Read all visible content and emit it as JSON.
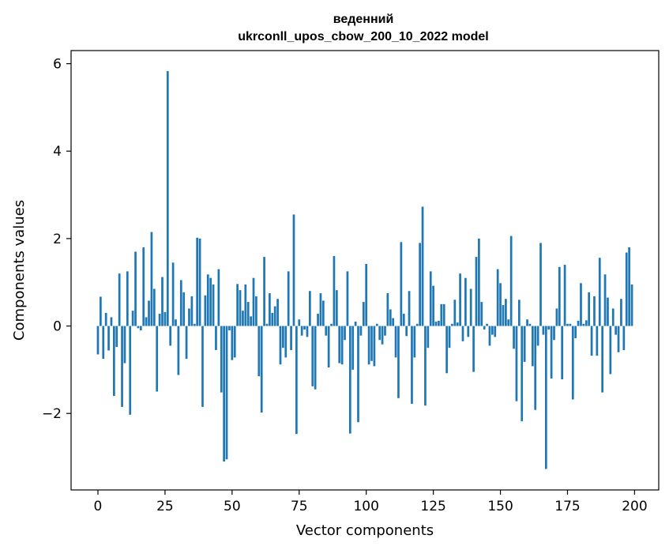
{
  "chart_data": {
    "type": "bar",
    "title_line1": "веденний",
    "title_line2": "ukrconll_upos_cbow_200_10_2022 model",
    "xlabel": "Vector components",
    "ylabel": "Components values",
    "xlim": [
      -10,
      209
    ],
    "ylim": [
      -3.75,
      6.3
    ],
    "xticks": [
      0,
      25,
      50,
      75,
      100,
      125,
      150,
      175,
      200
    ],
    "xtick_labels": [
      "0",
      "25",
      "50",
      "75",
      "100",
      "125",
      "150",
      "175",
      "200"
    ],
    "yticks": [
      -2,
      0,
      2,
      4,
      6
    ],
    "ytick_labels": [
      "−2",
      "0",
      "2",
      "4",
      "6"
    ],
    "bar_color": "#1f77b4",
    "grid": false,
    "x": [
      0,
      1,
      2,
      3,
      4,
      5,
      6,
      7,
      8,
      9,
      10,
      11,
      12,
      13,
      14,
      15,
      16,
      17,
      18,
      19,
      20,
      21,
      22,
      23,
      24,
      25,
      26,
      27,
      28,
      29,
      30,
      31,
      32,
      33,
      34,
      35,
      36,
      37,
      38,
      39,
      40,
      41,
      42,
      43,
      44,
      45,
      46,
      47,
      48,
      49,
      50,
      51,
      52,
      53,
      54,
      55,
      56,
      57,
      58,
      59,
      60,
      61,
      62,
      63,
      64,
      65,
      66,
      67,
      68,
      69,
      70,
      71,
      72,
      73,
      74,
      75,
      76,
      77,
      78,
      79,
      80,
      81,
      82,
      83,
      84,
      85,
      86,
      87,
      88,
      89,
      90,
      91,
      92,
      93,
      94,
      95,
      96,
      97,
      98,
      99,
      100,
      101,
      102,
      103,
      104,
      105,
      106,
      107,
      108,
      109,
      110,
      111,
      112,
      113,
      114,
      115,
      116,
      117,
      118,
      119,
      120,
      121,
      122,
      123,
      124,
      125,
      126,
      127,
      128,
      129,
      130,
      131,
      132,
      133,
      134,
      135,
      136,
      137,
      138,
      139,
      140,
      141,
      142,
      143,
      144,
      145,
      146,
      147,
      148,
      149,
      150,
      151,
      152,
      153,
      154,
      155,
      156,
      157,
      158,
      159,
      160,
      161,
      162,
      163,
      164,
      165,
      166,
      167,
      168,
      169,
      170,
      171,
      172,
      173,
      174,
      175,
      176,
      177,
      178,
      179,
      180,
      181,
      182,
      183,
      184,
      185,
      186,
      187,
      188,
      189,
      190,
      191,
      192,
      193,
      194,
      195,
      196,
      197,
      198,
      199
    ],
    "values": [
      -0.65,
      0.67,
      -0.75,
      0.3,
      -0.56,
      0.2,
      -1.6,
      -0.48,
      1.2,
      -1.85,
      -0.85,
      1.25,
      -2.03,
      0.35,
      1.7,
      -0.05,
      -0.1,
      1.8,
      0.2,
      0.58,
      2.15,
      0.85,
      -1.5,
      0.28,
      1.12,
      0.32,
      5.83,
      -0.45,
      1.45,
      0.15,
      -1.12,
      1.05,
      0.77,
      -0.75,
      0.4,
      0.68,
      0.05,
      2.02,
      2.0,
      -1.85,
      0.7,
      1.18,
      1.1,
      0.95,
      -0.55,
      1.3,
      -1.52,
      -3.1,
      -3.05,
      -0.1,
      -0.78,
      -0.72,
      0.96,
      0.82,
      0.35,
      0.95,
      0.55,
      0.22,
      1.1,
      0.68,
      -1.15,
      -1.98,
      1.58,
      0.05,
      0.75,
      0.3,
      0.45,
      0.62,
      -0.88,
      -0.5,
      -0.72,
      1.25,
      -0.55,
      2.55,
      -2.47,
      0.15,
      -0.22,
      -0.08,
      -0.25,
      0.8,
      -1.38,
      -1.45,
      0.28,
      0.75,
      0.58,
      -0.22,
      -0.95,
      0.05,
      1.6,
      0.82,
      -0.85,
      -0.88,
      -0.32,
      1.25,
      -2.46,
      -1.0,
      0.1,
      -2.2,
      -0.22,
      0.55,
      1.42,
      -0.88,
      -0.8,
      -0.92,
      0.05,
      -0.32,
      -0.42,
      -0.22,
      0.75,
      0.38,
      0.18,
      -0.72,
      -1.65,
      1.92,
      0.28,
      -0.23,
      0.8,
      -1.78,
      -0.72,
      0.05,
      1.9,
      2.73,
      -1.82,
      -0.5,
      1.25,
      0.92,
      0.1,
      0.12,
      0.5,
      0.5,
      -1.08,
      -0.5,
      0.05,
      0.6,
      0.08,
      1.2,
      -0.35,
      1.1,
      -0.25,
      0.85,
      -1.05,
      1.58,
      2.0,
      0.55,
      -0.08,
      0.05,
      -0.45,
      -0.2,
      -0.25,
      1.3,
      0.98,
      0.48,
      0.62,
      0.15,
      2.06,
      -0.52,
      -1.72,
      0.6,
      -2.18,
      -0.82,
      0.15,
      0.05,
      -0.92,
      -1.92,
      -0.45,
      1.9,
      -0.2,
      -3.27,
      -0.08,
      -1.2,
      -0.32,
      0.4,
      1.35,
      -1.22,
      1.4,
      0.05,
      0.05,
      -1.68,
      -0.28,
      0.12,
      0.98,
      0.05,
      0.13,
      0.77,
      -0.68,
      0.68,
      -0.68,
      1.56,
      -1.52,
      1.18,
      0.65,
      -1.1,
      0.4,
      -0.2,
      -0.6,
      0.62,
      -0.55,
      1.68,
      1.8,
      0.95
    ]
  }
}
